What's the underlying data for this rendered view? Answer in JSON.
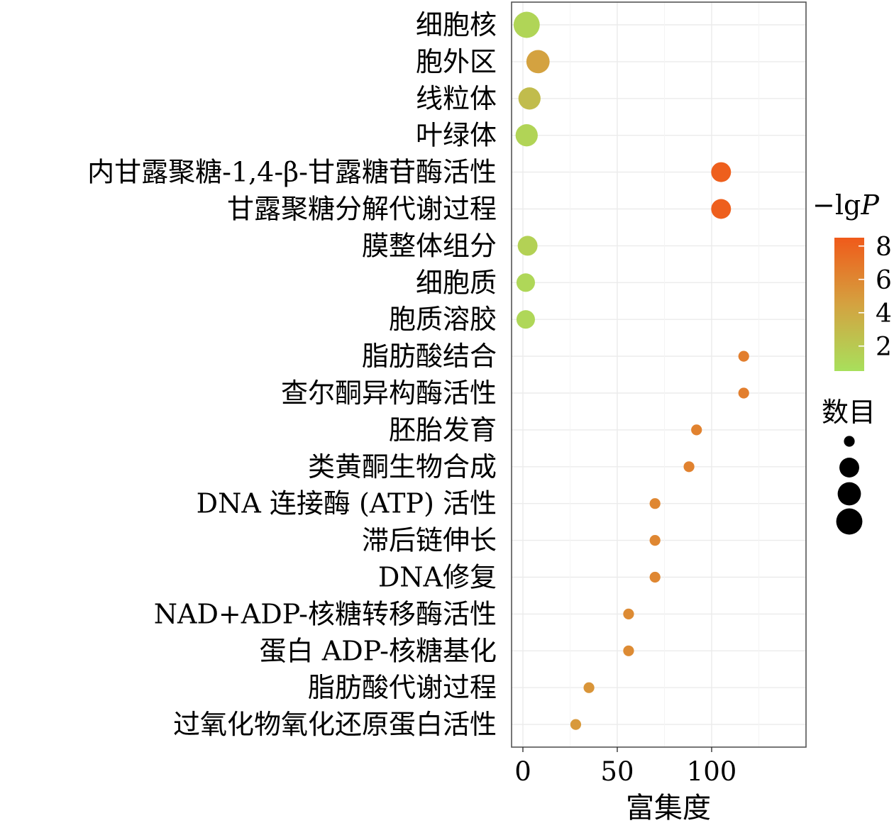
{
  "chart_data": {
    "type": "scatter",
    "title": "",
    "xlabel": "富集度",
    "ylabel": "",
    "xlim": [
      -6,
      150
    ],
    "x_ticks": [
      0,
      50,
      100
    ],
    "grid": true,
    "categories": [
      "细胞核",
      "胞外区",
      "线粒体",
      "叶绿体",
      "内甘露聚糖-1,4-β-甘露糖苷酶活性",
      "甘露聚糖分解代谢过程",
      "膜整体组分",
      "细胞质",
      "胞质溶胶",
      "脂肪酸结合",
      "查尔酮异构酶活性",
      "胚胎发育",
      "类黄酮生物合成",
      "DNA 连接酶 (ATP) 活性",
      "滞后链伸长",
      "DNA修复",
      "NAD+ADP-核糖转移酶活性",
      "蛋白 ADP-核糖基化",
      "脂肪酸代谢过程",
      "过氧化物氧化还原蛋白活性"
    ],
    "points": [
      {
        "category": "细胞核",
        "enrichment": 2,
        "neg_log_p": 1.2,
        "count": 12
      },
      {
        "category": "胞外区",
        "enrichment": 8,
        "neg_log_p": 4.5,
        "count": 9
      },
      {
        "category": "线粒体",
        "enrichment": 3.5,
        "neg_log_p": 2.8,
        "count": 8
      },
      {
        "category": "叶绿体",
        "enrichment": 2,
        "neg_log_p": 1.3,
        "count": 8
      },
      {
        "category": "内甘露聚糖-1,4-β-甘露糖苷酶活性",
        "enrichment": 105,
        "neg_log_p": 8.2,
        "count": 6
      },
      {
        "category": "甘露聚糖分解代谢过程",
        "enrichment": 105,
        "neg_log_p": 8.2,
        "count": 6
      },
      {
        "category": "膜整体组分",
        "enrichment": 2.5,
        "neg_log_p": 1.5,
        "count": 6
      },
      {
        "category": "细胞质",
        "enrichment": 1.5,
        "neg_log_p": 1.1,
        "count": 5
      },
      {
        "category": "胞质溶胶",
        "enrichment": 1.5,
        "neg_log_p": 1.1,
        "count": 5
      },
      {
        "category": "脂肪酸结合",
        "enrichment": 117,
        "neg_log_p": 6.5,
        "count": 1
      },
      {
        "category": "查尔酮异构酶活性",
        "enrichment": 117,
        "neg_log_p": 6.5,
        "count": 1
      },
      {
        "category": "胚胎发育",
        "enrichment": 92,
        "neg_log_p": 6.3,
        "count": 1
      },
      {
        "category": "类黄酮生物合成",
        "enrichment": 88,
        "neg_log_p": 6.3,
        "count": 1
      },
      {
        "category": "DNA 连接酶 (ATP) 活性",
        "enrichment": 70,
        "neg_log_p": 6.0,
        "count": 1
      },
      {
        "category": "滞后链伸长",
        "enrichment": 70,
        "neg_log_p": 6.0,
        "count": 1
      },
      {
        "category": "DNA修复",
        "enrichment": 70,
        "neg_log_p": 6.0,
        "count": 1
      },
      {
        "category": "NAD+ADP-核糖转移酶活性",
        "enrichment": 56,
        "neg_log_p": 5.8,
        "count": 1
      },
      {
        "category": "蛋白 ADP-核糖基化",
        "enrichment": 56,
        "neg_log_p": 5.8,
        "count": 1
      },
      {
        "category": "脂肪酸代谢过程",
        "enrichment": 35,
        "neg_log_p": 5.2,
        "count": 1
      },
      {
        "category": "过氧化物氧化还原蛋白活性",
        "enrichment": 28,
        "neg_log_p": 5.0,
        "count": 1
      }
    ],
    "color_legend": {
      "title_main": "−lg",
      "title_italic": "P",
      "ticks": [
        8,
        6,
        4,
        2
      ],
      "range": [
        0.5,
        8.5
      ],
      "color_low": "#a8e05c",
      "color_mid": "#d4a240",
      "color_high": "#f05a1a"
    },
    "size_legend": {
      "title": "数目",
      "counts": [
        1,
        6,
        9,
        12
      ]
    }
  }
}
